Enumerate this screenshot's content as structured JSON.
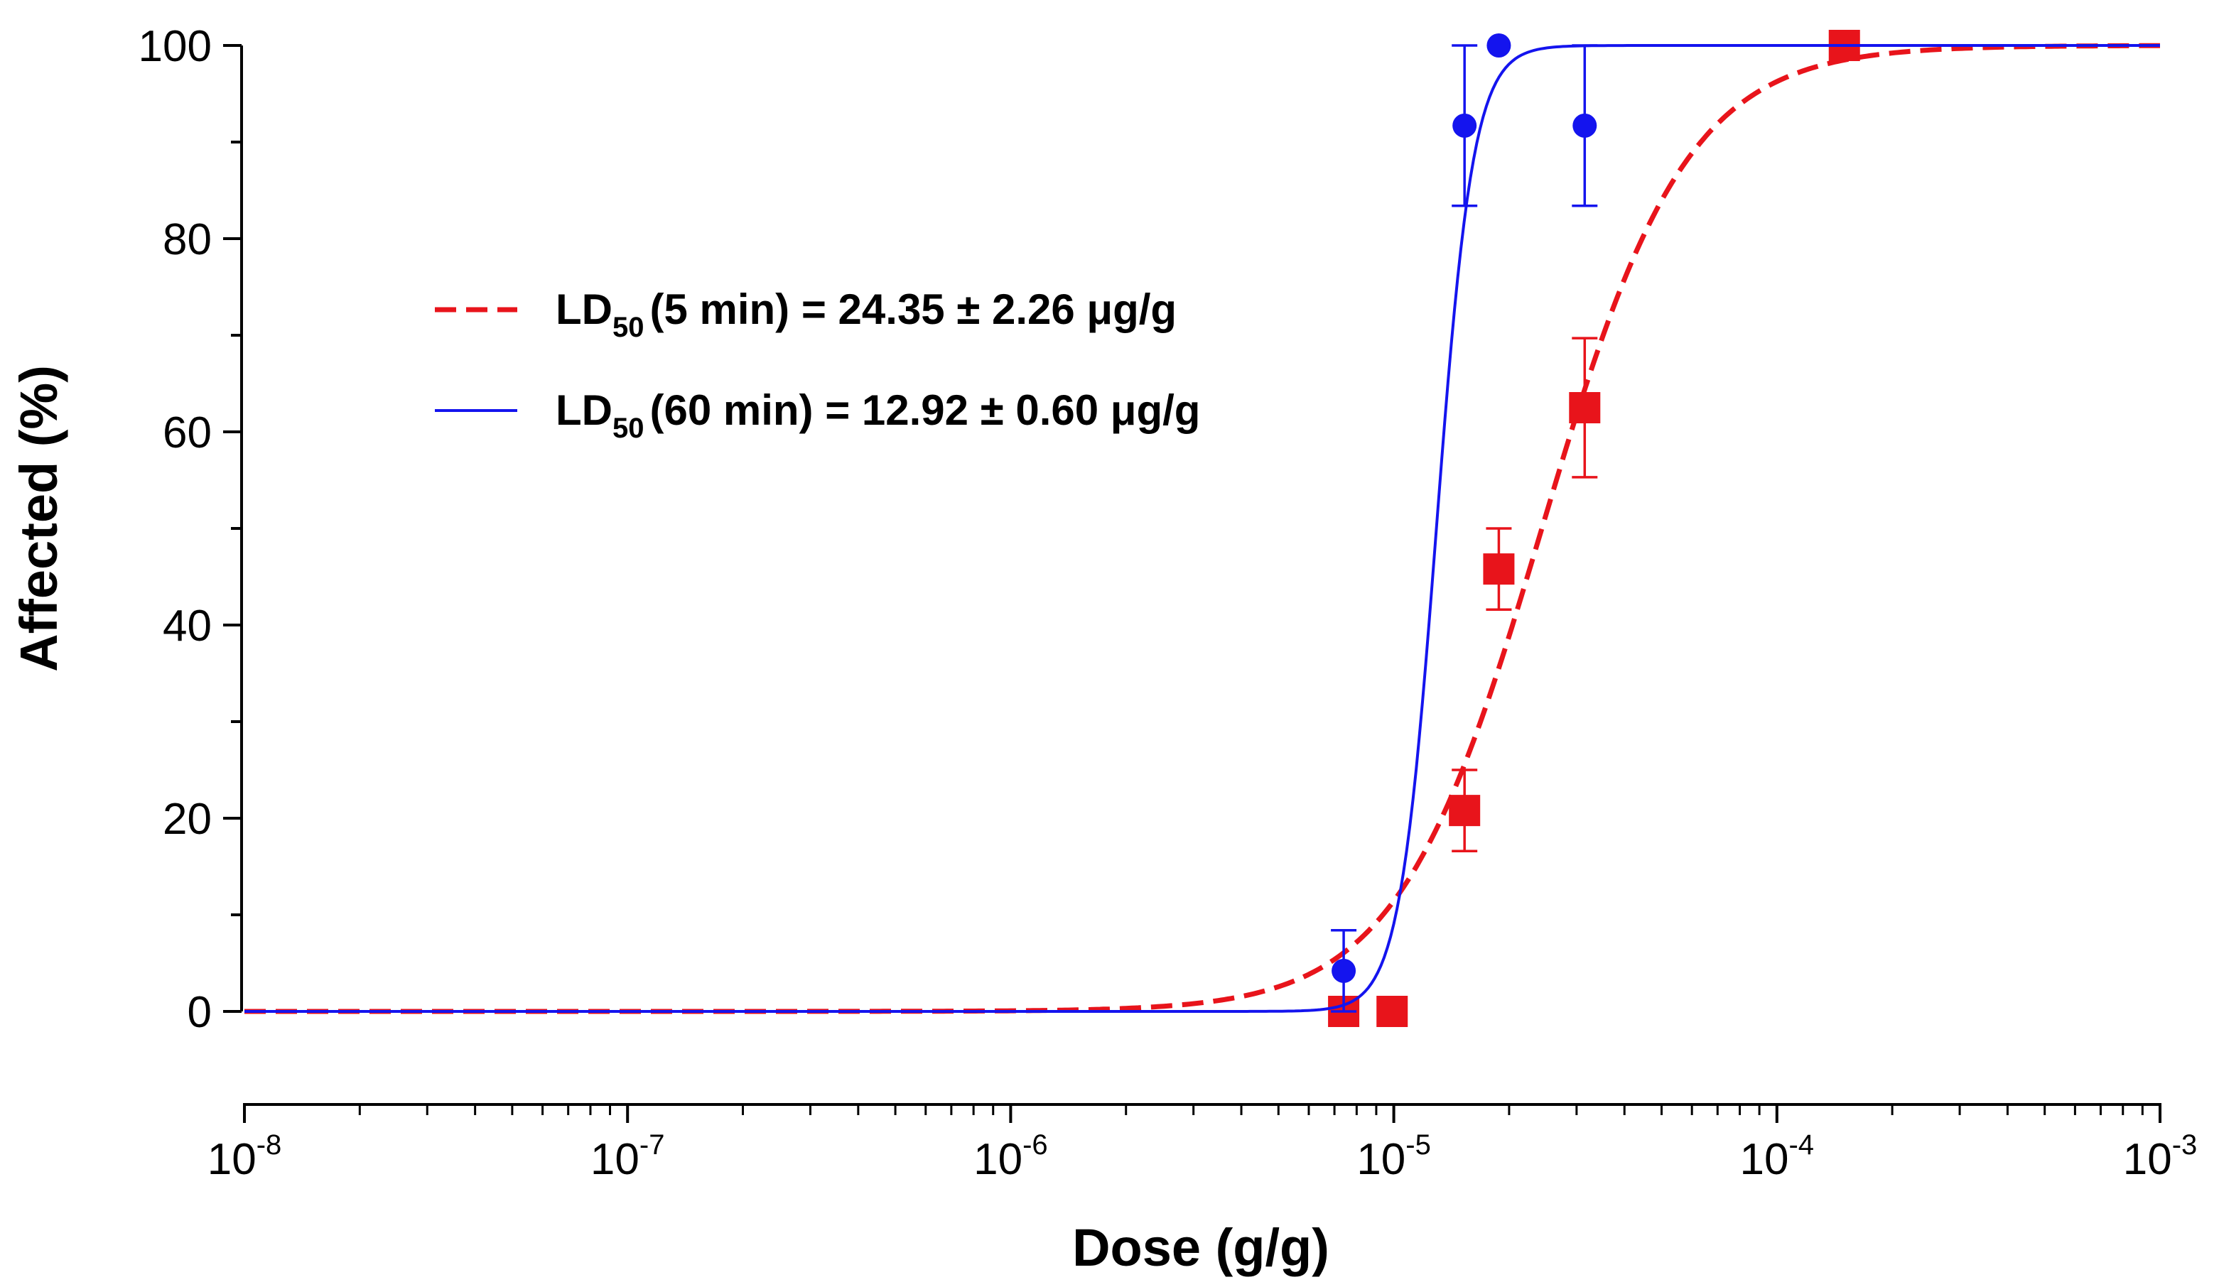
{
  "chart_data": {
    "type": "scatter",
    "title": "",
    "xlabel": "Dose (g/g)",
    "ylabel": "Affected (%)",
    "xscale": "log",
    "xlim": [
      1e-08,
      0.001
    ],
    "ylim": [
      -10,
      100
    ],
    "x_ticks": [
      {
        "base": "10",
        "exp": "-8"
      },
      {
        "base": "10",
        "exp": "-7"
      },
      {
        "base": "10",
        "exp": "-6"
      },
      {
        "base": "10",
        "exp": "-5"
      },
      {
        "base": "10",
        "exp": "-4"
      },
      {
        "base": "10",
        "exp": "-3"
      }
    ],
    "y_ticks": [
      "0",
      "20",
      "40",
      "60",
      "80",
      "100"
    ],
    "legend_position": "upper-left",
    "series": [
      {
        "name": "5 min",
        "color": "#e8141b",
        "marker": "square",
        "line_style": "dashed",
        "legend": {
          "prefix": "LD",
          "sub": "50",
          "text": "(5 min) = 24.35 ± 2.26 μg/g"
        },
        "fit": {
          "ld50": 2.435e-05,
          "hill": 2.3
        },
        "points": [
          {
            "x": 7.4e-06,
            "y": 0,
            "err": 0
          },
          {
            "x": 9.9e-06,
            "y": 0,
            "err": 0
          },
          {
            "x": 1.53e-05,
            "y": 20.8,
            "err": 4.2
          },
          {
            "x": 1.88e-05,
            "y": 45.8,
            "err": 4.2
          },
          {
            "x": 3.15e-05,
            "y": 62.5,
            "err": 7.2
          },
          {
            "x": 0.00015,
            "y": 100,
            "err": 0
          }
        ]
      },
      {
        "name": "60 min",
        "color": "#1414ee",
        "marker": "circle",
        "line_style": "solid",
        "legend": {
          "prefix": "LD",
          "sub": "50",
          "text": "(60 min) = 12.92 ± 0.60 μg/g"
        },
        "fit": {
          "ld50": 1.292e-05,
          "hill": 9.0
        },
        "points": [
          {
            "x": 7.4e-06,
            "y": 4.2,
            "err": 4.2
          },
          {
            "x": 1.53e-05,
            "y": 91.7,
            "err": 8.3
          },
          {
            "x": 1.88e-05,
            "y": 100,
            "err": 0
          },
          {
            "x": 3.15e-05,
            "y": 91.7,
            "err": 8.3
          }
        ]
      }
    ]
  }
}
